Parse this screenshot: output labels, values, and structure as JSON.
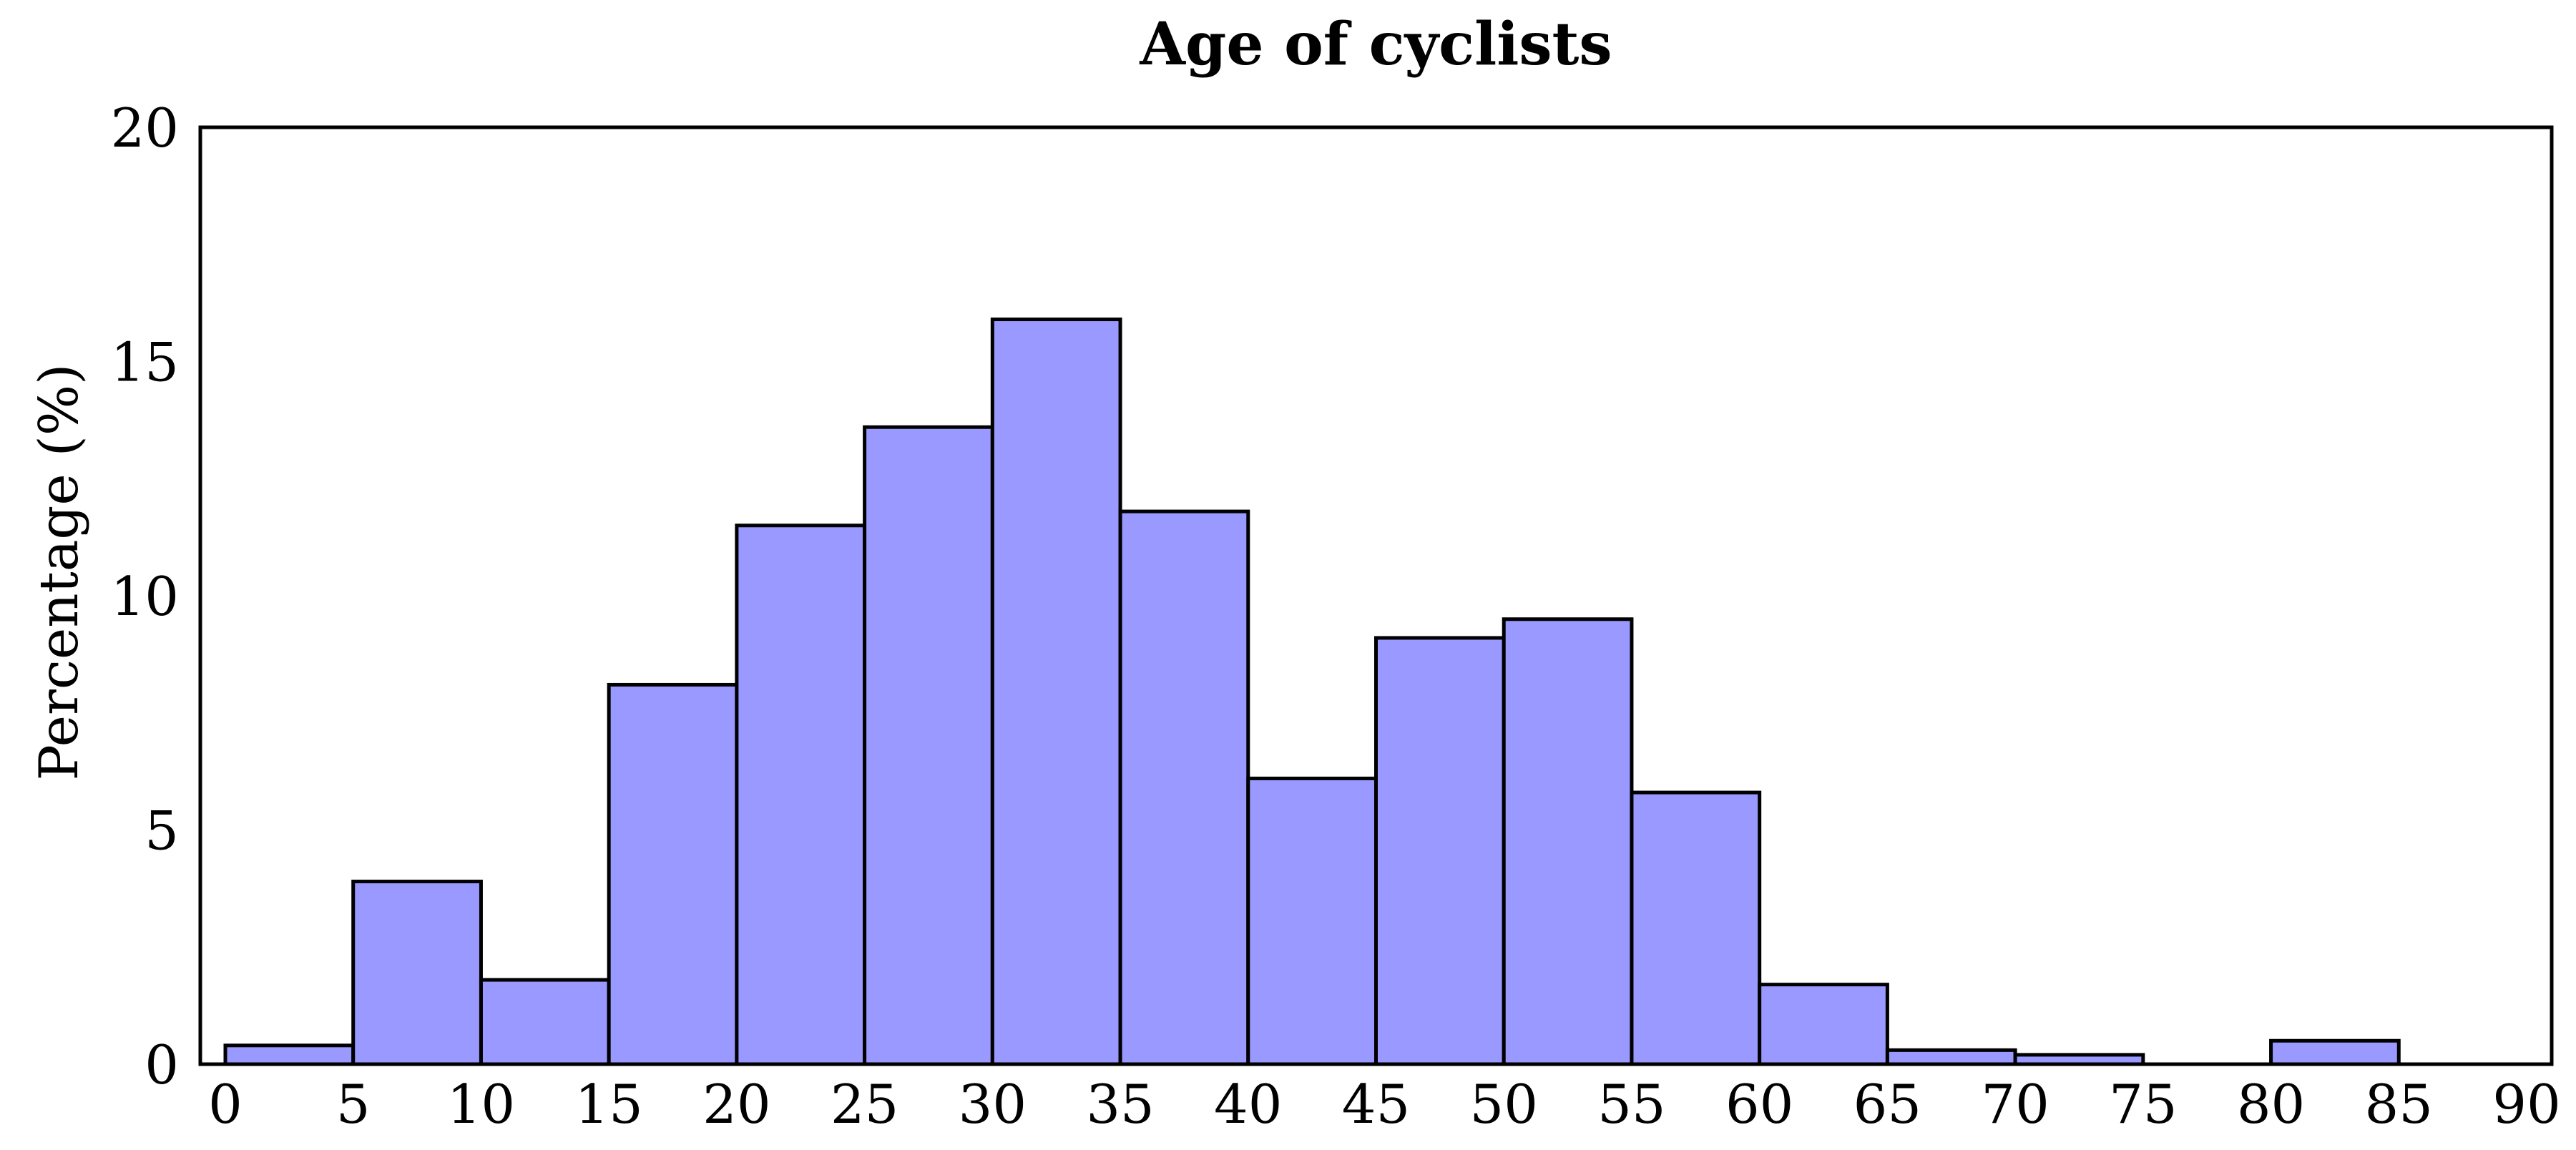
{
  "title": "Age of cyclists",
  "chart_data": {
    "type": "bar",
    "subtype": "histogram",
    "title": "Age of cyclists",
    "xlabel": "",
    "ylabel": "Percentage (%)",
    "bin_width": 5,
    "bin_start_ages": [
      0,
      5,
      10,
      15,
      20,
      25,
      30,
      35,
      40,
      45,
      50,
      55,
      60,
      65,
      70,
      75,
      80,
      85
    ],
    "values": [
      0.4,
      3.9,
      1.8,
      8.1,
      11.5,
      13.6,
      15.9,
      11.8,
      6.1,
      9.1,
      9.5,
      5.8,
      1.7,
      0.3,
      0.2,
      0,
      0.5,
      0
    ],
    "x_tick_labels": [
      "0",
      "5",
      "10",
      "15",
      "20",
      "25",
      "30",
      "35",
      "40",
      "45",
      "50",
      "55",
      "60",
      "65",
      "70",
      "75",
      "80",
      "85",
      "90"
    ],
    "x_tick_values": [
      0,
      5,
      10,
      15,
      20,
      25,
      30,
      35,
      40,
      45,
      50,
      55,
      60,
      65,
      70,
      75,
      80,
      85,
      90
    ],
    "y_tick_labels": [
      "0",
      "5",
      "10",
      "15",
      "20"
    ],
    "y_tick_values": [
      0,
      5,
      10,
      15,
      20
    ],
    "xlim": [
      0,
      90
    ],
    "ylim": [
      0,
      20
    ],
    "grid": false,
    "legend": false,
    "colors": {
      "bar_fill": "#9999ff",
      "bar_edge": "#000000",
      "axis_frame": "#000000",
      "background": "#ffffff",
      "text": "#000000"
    }
  }
}
